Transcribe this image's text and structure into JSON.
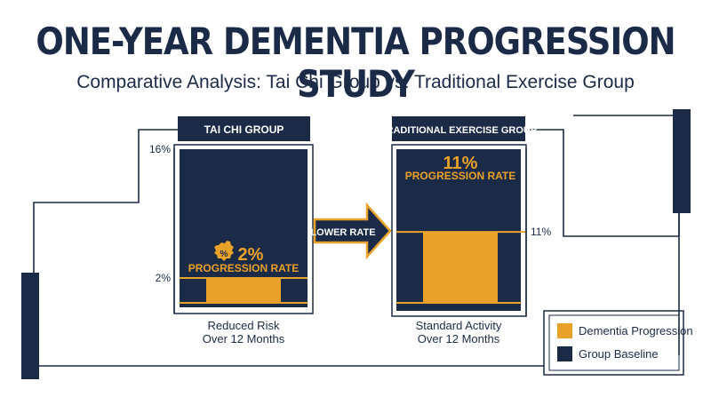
{
  "title": "ONE-YEAR DEMENTIA PROGRESSION STUDY",
  "subtitle": "Comparative Analysis: Tai Chi Group vs. Traditional Exercise Group",
  "colors": {
    "navy": "#1b2a47",
    "orange": "#e9a229",
    "white": "#ffffff"
  },
  "chart_data": {
    "type": "bar",
    "ylim": [
      0,
      16
    ],
    "groups": [
      {
        "header": "TAI CHI GROUP",
        "progression_value": 2,
        "value_label": "2%",
        "rate_label": "PROGRESSION RATE",
        "axis_top_label": "16%",
        "axis_value_label": "2%",
        "caption_line1": "Reduced Risk",
        "caption_line2": "Over 12 Months",
        "badge_icon": "percent-badge-icon"
      },
      {
        "header": "TRADITIONAL EXERCISE GROUP",
        "progression_value": 11,
        "value_label": "11%",
        "rate_label": "PROGRESSION RATE",
        "axis_value_label": "11%",
        "caption_line1": "Standard Activity",
        "caption_line2": "Over 12 Months"
      }
    ],
    "arrow_label": "LOWER RATE",
    "legend": [
      {
        "label": "Dementia Progression",
        "color": "#e9a229"
      },
      {
        "label": "Group Baseline",
        "color": "#1b2a47"
      }
    ]
  }
}
